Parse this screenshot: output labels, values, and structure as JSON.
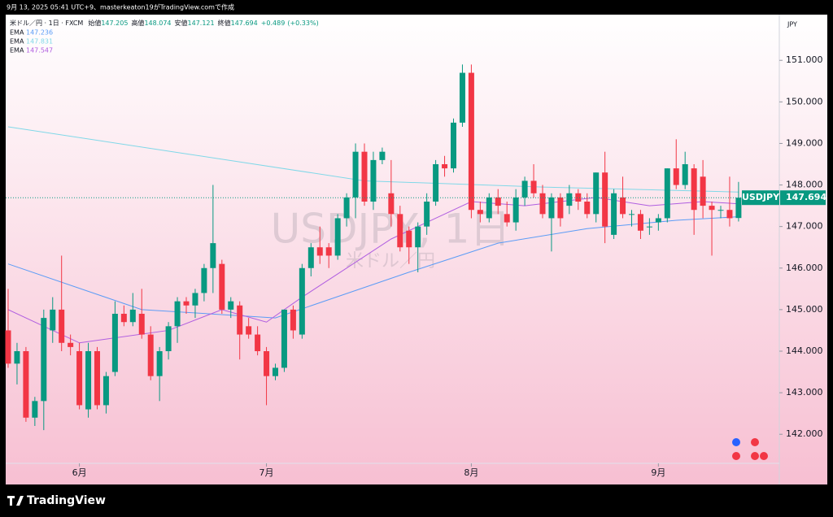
{
  "header": {
    "created": "9月 13, 2025 05:41 UTC+9、masterkeaton19がTradingView.comで作成"
  },
  "footer": {
    "brand": "TradingView"
  },
  "chart_data": {
    "type": "candlestick",
    "symbol_line": "米ドル／円 · 1日 · FXCM",
    "open_label": "始値",
    "high_label": "高値",
    "low_label": "安値",
    "close_label": "終値",
    "change": "+0.489",
    "change_percent": "(+0.33%)",
    "currency": "JPY",
    "watermark": "USDJPY, 1日",
    "watermark_sub": "米ドル／円",
    "ticker": "USDJPY",
    "up_color": "#089981",
    "down_color": "#f23645",
    "categories": [
      null,
      null,
      null,
      null,
      null,
      null,
      null,
      null,
      "6月",
      null,
      null,
      null,
      null,
      null,
      null,
      null,
      null,
      null,
      null,
      null,
      null,
      null,
      null,
      null,
      null,
      null,
      null,
      null,
      null,
      "7月",
      null,
      null,
      null,
      null,
      null,
      null,
      null,
      null,
      null,
      null,
      null,
      null,
      null,
      null,
      null,
      null,
      null,
      null,
      null,
      null,
      null,
      null,
      "8月",
      null,
      null,
      null,
      null,
      null,
      null,
      null,
      null,
      null,
      null,
      null,
      null,
      null,
      null,
      null,
      null,
      null,
      null,
      null,
      null,
      "9月",
      null,
      null,
      null,
      null,
      null,
      null,
      null,
      null,
      null
    ],
    "open": [
      144.5,
      143.7,
      144.0,
      142.4,
      142.8,
      144.5,
      145.0,
      144.2,
      144.0,
      142.6,
      144.0,
      142.7,
      143.5,
      144.9,
      144.7,
      144.9,
      144.4,
      143.4,
      144.0,
      144.6,
      145.2,
      145.1,
      145.4,
      146.0,
      146.1,
      145.0,
      145.1,
      144.6,
      144.4,
      144.0,
      143.4,
      143.6,
      145.0,
      144.4,
      146.0,
      146.5,
      146.5,
      146.3,
      147.2,
      147.7,
      148.8,
      147.6,
      148.6,
      147.8,
      147.3,
      146.9,
      146.5,
      147.0,
      147.6,
      148.5,
      148.4,
      149.5,
      150.7,
      147.4,
      147.2,
      147.7,
      147.3,
      147.1,
      147.7,
      148.1,
      147.8,
      147.2,
      147.7,
      147.5,
      147.8,
      147.6,
      147.3,
      148.3,
      146.8,
      147.7,
      147.3,
      147.3,
      147.0,
      147.1,
      147.2,
      148.4,
      148.0,
      148.4,
      148.2,
      147.5,
      147.4,
      147.4,
      147.205
    ],
    "high": [
      145.5,
      144.2,
      144.1,
      142.9,
      145.0,
      145.3,
      146.3,
      144.4,
      144.2,
      144.2,
      144.1,
      143.5,
      145.2,
      145.1,
      145.4,
      145.5,
      144.6,
      144.1,
      144.7,
      145.3,
      145.3,
      145.5,
      146.1,
      148.0,
      146.2,
      145.3,
      145.2,
      144.8,
      144.6,
      144.1,
      143.7,
      145.0,
      145.1,
      146.1,
      146.6,
      147.0,
      146.6,
      147.3,
      147.8,
      149.0,
      149.0,
      148.8,
      148.9,
      148.6,
      147.5,
      147.0,
      147.1,
      147.8,
      148.6,
      148.7,
      149.6,
      150.9,
      150.9,
      147.6,
      147.8,
      147.9,
      147.6,
      147.9,
      148.2,
      148.5,
      148.0,
      147.8,
      147.8,
      148.0,
      147.9,
      147.8,
      148.3,
      148.8,
      147.9,
      148.2,
      147.4,
      147.4,
      147.2,
      147.3,
      148.4,
      149.1,
      148.8,
      148.5,
      148.6,
      147.6,
      147.5,
      148.2,
      148.074
    ],
    "low": [
      143.6,
      143.2,
      142.3,
      142.2,
      142.1,
      144.2,
      144.0,
      143.9,
      142.6,
      142.4,
      142.6,
      142.5,
      143.4,
      144.6,
      144.6,
      144.3,
      143.3,
      142.8,
      143.8,
      144.2,
      144.9,
      144.8,
      145.2,
      145.4,
      144.9,
      144.8,
      143.8,
      144.3,
      143.9,
      142.7,
      143.3,
      143.5,
      144.3,
      144.3,
      145.8,
      146.1,
      146.0,
      146.2,
      147.0,
      147.2,
      147.5,
      147.4,
      148.5,
      147.0,
      146.4,
      146.1,
      145.9,
      146.8,
      147.5,
      148.2,
      148.3,
      149.4,
      147.2,
      147.1,
      147.1,
      147.3,
      147.0,
      146.9,
      147.5,
      147.7,
      147.2,
      146.4,
      147.0,
      147.3,
      147.4,
      147.2,
      147.1,
      146.6,
      146.7,
      147.2,
      147.0,
      146.7,
      146.8,
      146.9,
      147.1,
      147.9,
      147.9,
      146.8,
      147.2,
      146.3,
      147.2,
      147.0,
      147.121
    ],
    "close": [
      143.7,
      144.0,
      142.4,
      142.8,
      144.8,
      145.0,
      144.2,
      144.1,
      142.7,
      144.0,
      142.7,
      143.4,
      144.9,
      144.7,
      145.0,
      144.4,
      143.4,
      144.0,
      144.6,
      145.2,
      145.1,
      145.4,
      146.0,
      146.6,
      145.0,
      145.2,
      144.4,
      144.4,
      144.0,
      143.4,
      143.6,
      145.0,
      144.5,
      146.0,
      146.5,
      146.3,
      146.3,
      147.2,
      147.7,
      148.8,
      147.6,
      148.6,
      148.8,
      147.3,
      146.5,
      146.5,
      147.0,
      147.6,
      148.5,
      148.4,
      149.5,
      150.7,
      147.4,
      147.3,
      147.7,
      147.5,
      147.1,
      147.7,
      148.1,
      147.8,
      147.3,
      147.7,
      147.2,
      147.8,
      147.6,
      147.3,
      148.3,
      147.0,
      147.8,
      147.3,
      147.3,
      146.9,
      147.0,
      147.2,
      148.4,
      148.0,
      148.5,
      147.4,
      147.5,
      147.4,
      147.4,
      147.2,
      147.694
    ],
    "series": [
      {
        "name": "EMA",
        "value_label": "147.236",
        "color": "#5b9cf6",
        "x": [
          0,
          15,
          30,
          45,
          55,
          65,
          75,
          82
        ],
        "values": [
          146.1,
          145.0,
          144.8,
          145.9,
          146.6,
          146.95,
          147.15,
          147.236
        ]
      },
      {
        "name": "EMA",
        "value_label": "147.831",
        "color": "#80d8e8",
        "x": [
          0,
          20,
          40,
          60,
          82
        ],
        "values": [
          149.4,
          148.75,
          148.1,
          147.95,
          147.831
        ]
      },
      {
        "name": "EMA",
        "value_label": "147.547",
        "color": "#b05ee0",
        "x": [
          0,
          8,
          18,
          24,
          29,
          33,
          38,
          43,
          48,
          52,
          58,
          66,
          72,
          78,
          82
        ],
        "values": [
          145.0,
          144.2,
          144.5,
          145.0,
          144.7,
          145.3,
          146.0,
          146.7,
          147.2,
          147.6,
          147.5,
          147.7,
          147.5,
          147.6,
          147.547
        ]
      }
    ],
    "ylim": [
      141.3,
      152.1
    ],
    "yticks": [
      {
        "value": 142,
        "label": "142.000"
      },
      {
        "value": 143,
        "label": "143.000"
      },
      {
        "value": 144,
        "label": "144.000"
      },
      {
        "value": 145,
        "label": "145.000"
      },
      {
        "value": 146,
        "label": "146.000"
      },
      {
        "value": 147,
        "label": "147.000"
      },
      {
        "value": 148,
        "label": "148.000"
      },
      {
        "value": 149,
        "label": "149.000"
      },
      {
        "value": 150,
        "label": "150.000"
      },
      {
        "value": 151,
        "label": "151.000"
      }
    ]
  }
}
